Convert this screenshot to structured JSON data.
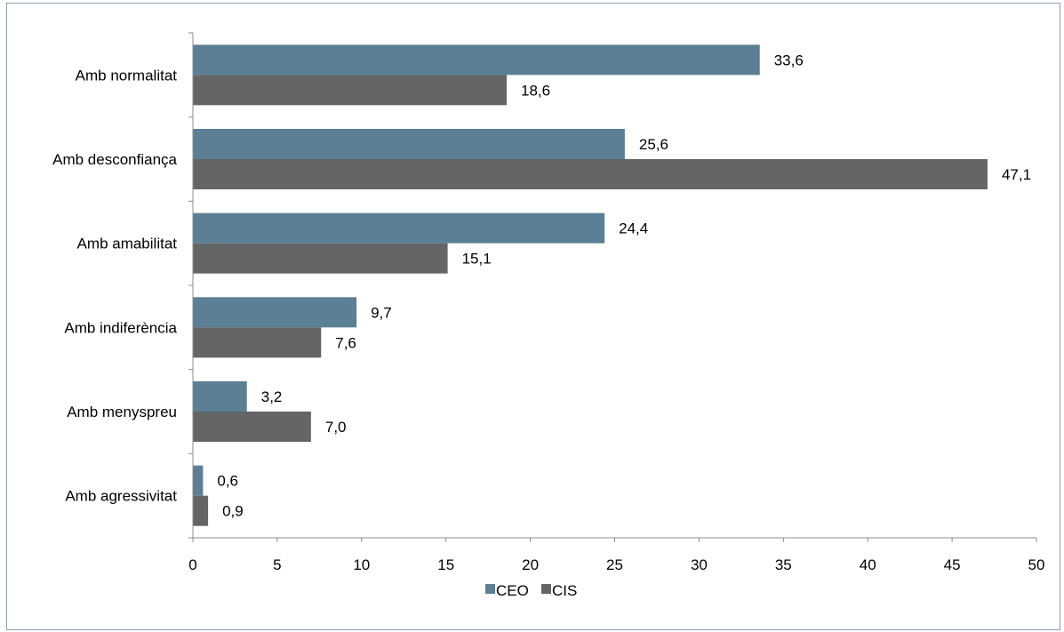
{
  "chart_data": {
    "type": "bar",
    "orientation": "horizontal",
    "categories": [
      "Amb normalitat",
      "Amb desconfiança",
      "Amb amabilitat",
      "Amb indiferència",
      "Amb menyspreu",
      "Amb agressivitat"
    ],
    "series": [
      {
        "name": "CEO",
        "color": "#5b7f94",
        "values": [
          33.6,
          25.6,
          24.4,
          9.7,
          3.2,
          0.6
        ],
        "labels": [
          "33,6",
          "25,6",
          "24,4",
          "9,7",
          "3,2",
          "0,6"
        ]
      },
      {
        "name": "CIS",
        "color": "#636566",
        "values": [
          18.6,
          47.1,
          15.1,
          7.6,
          7.0,
          0.9
        ],
        "labels": [
          "18,6",
          "47,1",
          "15,1",
          "7,6",
          "7,0",
          "0,9"
        ]
      }
    ],
    "xlim": [
      0,
      50
    ],
    "xticks": [
      0,
      5,
      10,
      15,
      20,
      25,
      30,
      35,
      40,
      45,
      50
    ],
    "xtick_labels": [
      "0",
      "5",
      "10",
      "15",
      "20",
      "25",
      "30",
      "35",
      "40",
      "45",
      "50"
    ],
    "grid": false,
    "legend_position": "bottom-center",
    "title": "",
    "xlabel": "",
    "ylabel": ""
  }
}
